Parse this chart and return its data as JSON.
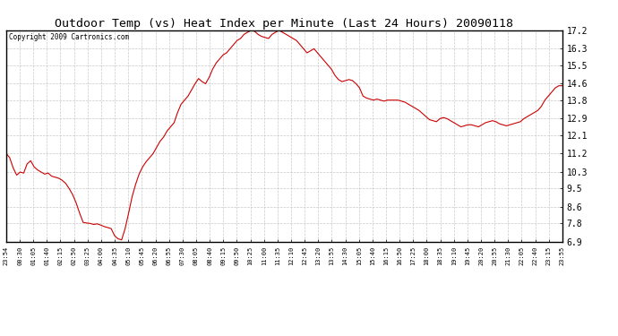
{
  "title": "Outdoor Temp (vs) Heat Index per Minute (Last 24 Hours) 20090118",
  "copyright": "Copyright 2009 Cartronics.com",
  "line_color": "#cc0000",
  "background_color": "#ffffff",
  "grid_color": "#bbbbbb",
  "ylim": [
    6.9,
    17.2
  ],
  "yticks": [
    6.9,
    7.8,
    8.6,
    9.5,
    10.3,
    11.2,
    12.1,
    12.9,
    13.8,
    14.6,
    15.5,
    16.3,
    17.2
  ],
  "xtick_labels": [
    "23:54",
    "00:30",
    "01:05",
    "01:40",
    "02:15",
    "02:50",
    "03:25",
    "04:00",
    "04:35",
    "05:10",
    "05:45",
    "06:20",
    "06:55",
    "07:30",
    "08:05",
    "08:40",
    "09:15",
    "09:50",
    "10:25",
    "11:00",
    "11:35",
    "12:10",
    "12:45",
    "13:20",
    "13:55",
    "14:30",
    "15:05",
    "15:40",
    "16:15",
    "16:50",
    "17:25",
    "18:00",
    "18:35",
    "19:10",
    "19:45",
    "20:20",
    "20:55",
    "21:30",
    "22:05",
    "22:40",
    "23:15",
    "23:55"
  ],
  "data_y": [
    11.2,
    11.0,
    10.5,
    10.15,
    10.3,
    10.25,
    10.7,
    10.85,
    10.55,
    10.4,
    10.3,
    10.2,
    10.25,
    10.1,
    10.05,
    10.0,
    9.9,
    9.75,
    9.5,
    9.2,
    8.8,
    8.3,
    7.85,
    7.82,
    7.8,
    7.75,
    7.78,
    7.72,
    7.65,
    7.6,
    7.55,
    7.2,
    7.05,
    7.0,
    7.55,
    8.3,
    9.1,
    9.7,
    10.2,
    10.55,
    10.8,
    11.0,
    11.2,
    11.5,
    11.8,
    12.0,
    12.3,
    12.5,
    12.7,
    13.2,
    13.6,
    13.8,
    14.0,
    14.3,
    14.6,
    14.85,
    14.7,
    14.6,
    14.9,
    15.3,
    15.6,
    15.8,
    16.0,
    16.1,
    16.3,
    16.5,
    16.7,
    16.8,
    17.0,
    17.1,
    17.2,
    17.15,
    17.0,
    16.9,
    16.85,
    16.8,
    17.0,
    17.1,
    17.2,
    17.1,
    17.0,
    16.9,
    16.8,
    16.7,
    16.5,
    16.3,
    16.1,
    16.2,
    16.3,
    16.1,
    15.9,
    15.7,
    15.5,
    15.3,
    15.0,
    14.8,
    14.7,
    14.75,
    14.8,
    14.75,
    14.6,
    14.4,
    14.0,
    13.9,
    13.85,
    13.8,
    13.85,
    13.8,
    13.75,
    13.8,
    13.8,
    13.8,
    13.8,
    13.75,
    13.7,
    13.6,
    13.5,
    13.4,
    13.3,
    13.15,
    13.0,
    12.85,
    12.8,
    12.75,
    12.9,
    12.95,
    12.9,
    12.8,
    12.7,
    12.6,
    12.5,
    12.55,
    12.6,
    12.6,
    12.55,
    12.5,
    12.6,
    12.7,
    12.75,
    12.8,
    12.75,
    12.65,
    12.6,
    12.55,
    12.6,
    12.65,
    12.7,
    12.75,
    12.9,
    13.0,
    13.1,
    13.2,
    13.3,
    13.5,
    13.8,
    14.0,
    14.2,
    14.4,
    14.5,
    14.5
  ]
}
